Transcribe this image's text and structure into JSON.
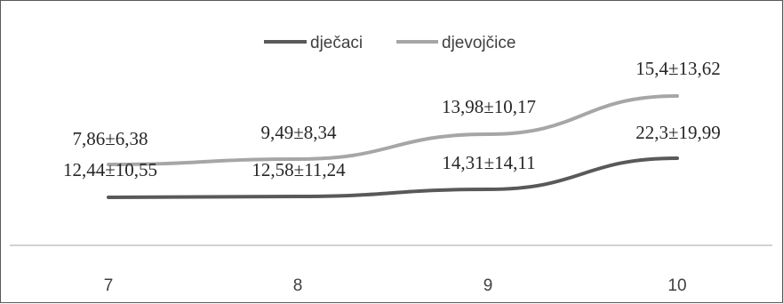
{
  "chart_data": {
    "type": "line",
    "categories": [
      "7",
      "8",
      "9",
      "10"
    ],
    "series": [
      {
        "name": "dječaci",
        "color": "#595959",
        "values": [
          12.44,
          12.58,
          14.31,
          22.3
        ],
        "labels": [
          "12,44±10,55",
          "12,58±11,24",
          "14,31±14,11",
          "22,3±19,99"
        ]
      },
      {
        "name": "djevojčice",
        "color": "#a6a6a6",
        "values": [
          7.86,
          9.49,
          13.98,
          15.4
        ],
        "labels": [
          "7,86±6,38",
          "9,49±8,34",
          "13,98±10,17",
          "15,4±13,62"
        ]
      }
    ],
    "legend_position": "top-center",
    "grid": false,
    "title": "",
    "xlabel": "",
    "ylabel": ""
  }
}
